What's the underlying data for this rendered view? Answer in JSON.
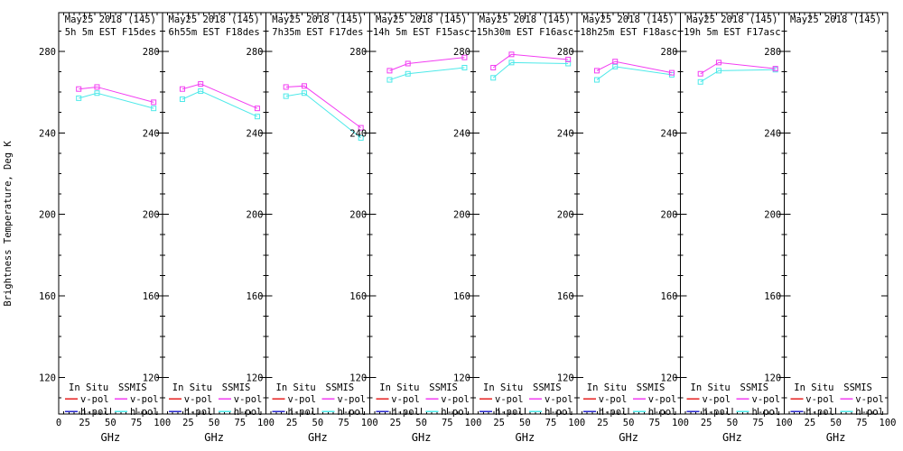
{
  "figure": {
    "ylabel": "Brightness Temperature, Deg K",
    "xlabel": "GHz"
  },
  "legend": {
    "col1_header": "In Situ",
    "col2_header": "SSMIS",
    "vpol_label": "v-pol",
    "hpol_label": "h-pol",
    "in_situ_vpol_color": "#e62020",
    "in_situ_hpol_color": "#2929cc",
    "ssmis_vpol_color": "#f23df2",
    "ssmis_hpol_color": "#4de9e9"
  },
  "chart_data": {
    "type": "line",
    "title": "May25 2018 (145)",
    "xlabel": "GHz",
    "ylabel": "Brightness Temperature, Deg K",
    "x_ghz": [
      19.35,
      37.0,
      91.655
    ],
    "xlim": [
      0,
      100
    ],
    "xticks": [
      0,
      25,
      50,
      75,
      100
    ],
    "x_minor_step": 5,
    "ylim": [
      102,
      299
    ],
    "yticks": [
      120,
      160,
      200,
      240,
      280
    ],
    "y_minor_step": 10,
    "grid": false,
    "legend_position": "bottom-inside-each-panel",
    "marker": "open-square",
    "panels": [
      {
        "title": "May25 2018 (145)",
        "subtitle": "5h 5m EST F15des",
        "series": [
          {
            "name": "SSMIS v-pol",
            "color_key": "ssmis_vpol_color",
            "values": [
              261.5,
              262.5,
              255.0
            ]
          },
          {
            "name": "SSMIS h-pol",
            "color_key": "ssmis_hpol_color",
            "values": [
              257.0,
              259.5,
              252.0
            ]
          }
        ]
      },
      {
        "title": "May25 2018 (145)",
        "subtitle": "6h55m EST F18des",
        "series": [
          {
            "name": "SSMIS v-pol",
            "color_key": "ssmis_vpol_color",
            "values": [
              261.5,
              264.0,
              252.0
            ]
          },
          {
            "name": "SSMIS h-pol",
            "color_key": "ssmis_hpol_color",
            "values": [
              256.5,
              260.5,
              248.0
            ]
          }
        ]
      },
      {
        "title": "May25 2018 (145)",
        "subtitle": "7h35m EST F17des",
        "series": [
          {
            "name": "SSMIS v-pol",
            "color_key": "ssmis_vpol_color",
            "values": [
              262.5,
              263.0,
              242.5
            ]
          },
          {
            "name": "SSMIS h-pol",
            "color_key": "ssmis_hpol_color",
            "values": [
              258.0,
              259.5,
              237.5
            ]
          }
        ]
      },
      {
        "title": "May25 2018 (145)",
        "subtitle": "14h 5m EST F15asc",
        "series": [
          {
            "name": "SSMIS v-pol",
            "color_key": "ssmis_vpol_color",
            "values": [
              270.5,
              274.0,
              277.0
            ]
          },
          {
            "name": "SSMIS h-pol",
            "color_key": "ssmis_hpol_color",
            "values": [
              266.0,
              269.0,
              272.0
            ]
          }
        ]
      },
      {
        "title": "May25 2018 (145)",
        "subtitle": "15h30m EST F16asc",
        "series": [
          {
            "name": "SSMIS v-pol",
            "color_key": "ssmis_vpol_color",
            "values": [
              272.0,
              278.5,
              276.0
            ]
          },
          {
            "name": "SSMIS h-pol",
            "color_key": "ssmis_hpol_color",
            "values": [
              267.0,
              274.5,
              274.0
            ]
          }
        ]
      },
      {
        "title": "May25 2018 (145)",
        "subtitle": "18h25m EST F18asc",
        "series": [
          {
            "name": "SSMIS v-pol",
            "color_key": "ssmis_vpol_color",
            "values": [
              270.5,
              275.0,
              269.5
            ]
          },
          {
            "name": "SSMIS h-pol",
            "color_key": "ssmis_hpol_color",
            "values": [
              266.0,
              272.5,
              268.5
            ]
          }
        ]
      },
      {
        "title": "May25 2018 (145)",
        "subtitle": "19h 5m EST F17asc",
        "series": [
          {
            "name": "SSMIS v-pol",
            "color_key": "ssmis_vpol_color",
            "values": [
              269.0,
              274.5,
              271.5
            ]
          },
          {
            "name": "SSMIS h-pol",
            "color_key": "ssmis_hpol_color",
            "values": [
              265.0,
              270.5,
              271.0
            ]
          }
        ]
      },
      {
        "title": "May25 2018 (145)",
        "subtitle": "",
        "series": []
      }
    ]
  }
}
